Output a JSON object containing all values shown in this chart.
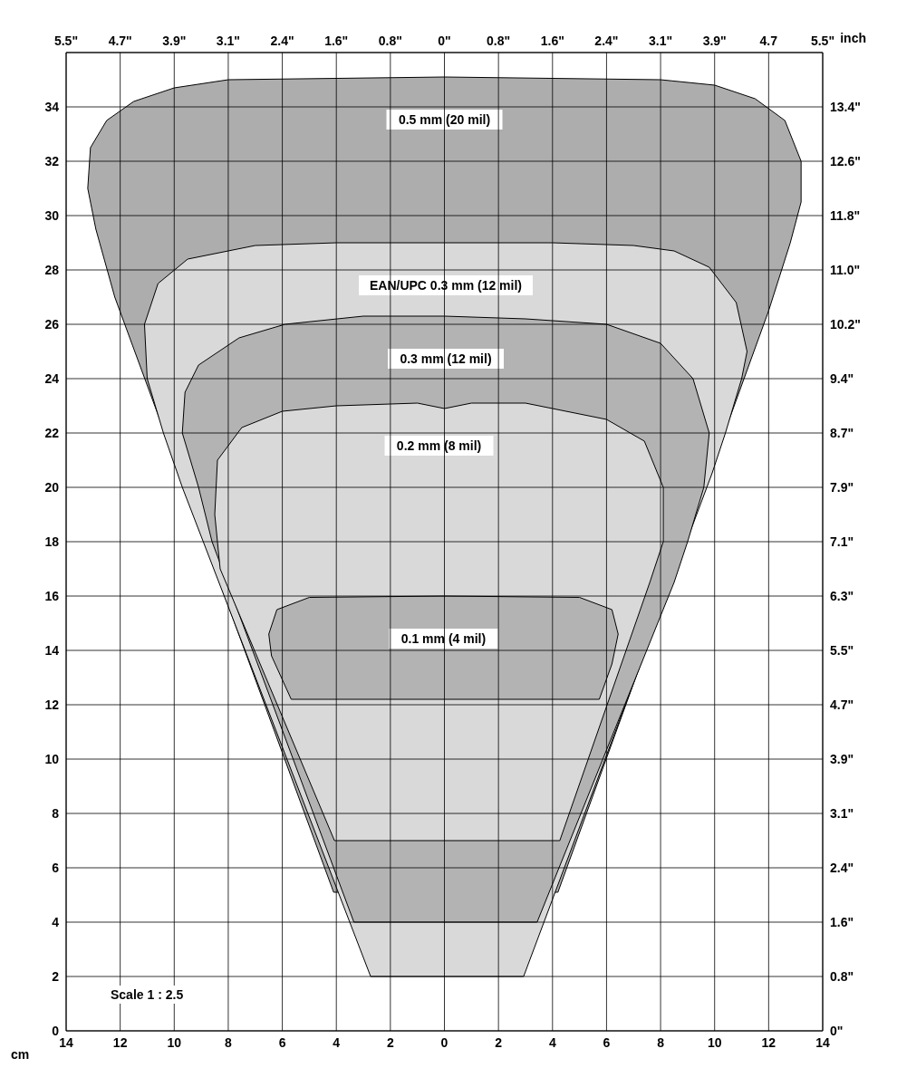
{
  "chart_data": {
    "type": "area",
    "xlabel": "cm",
    "y2label": "inch",
    "annotations": [
      "Scale 1 : 2.5"
    ],
    "xlim": [
      -14,
      14
    ],
    "ylim": [
      0,
      36
    ],
    "xticks": [
      {
        "value": -14,
        "label": "14"
      },
      {
        "value": -12,
        "label": "12"
      },
      {
        "value": -10,
        "label": "10"
      },
      {
        "value": -8,
        "label": "8"
      },
      {
        "value": -6,
        "label": "6"
      },
      {
        "value": -4,
        "label": "4"
      },
      {
        "value": -2,
        "label": "2"
      },
      0,
      2,
      4,
      6,
      8,
      10,
      12,
      14
    ],
    "yticks": [
      0,
      2,
      4,
      6,
      8,
      10,
      12,
      14,
      16,
      18,
      20,
      22,
      24,
      26,
      28,
      30,
      32,
      34
    ],
    "x2lim": [
      -5.512,
      5.512
    ],
    "x2ticks": [
      {
        "value": -5.512,
        "label": "5.5\""
      },
      {
        "value": -4.724,
        "label": "4.7\""
      },
      {
        "value": -3.937,
        "label": "3.9\""
      },
      {
        "value": -3.15,
        "label": "3.1\""
      },
      {
        "value": -2.362,
        "label": "2.4\""
      },
      {
        "value": -1.575,
        "label": "1.6\""
      },
      {
        "value": -0.787,
        "label": "0.8\""
      },
      {
        "value": 0,
        "label": "0\""
      },
      {
        "value": 0.787,
        "label": "0.8\""
      },
      {
        "value": 1.575,
        "label": "1.6\""
      },
      {
        "value": 2.362,
        "label": "2.4\""
      },
      {
        "value": 3.15,
        "label": "3.1\""
      },
      {
        "value": 3.937,
        "label": "3.9\""
      },
      {
        "value": 4.724,
        "label": "4.7"
      },
      {
        "value": 5.512,
        "label": "5.5\""
      }
    ],
    "y2lim": [
      0,
      14.173
    ],
    "y2ticks": [
      {
        "value": 0,
        "label": "0\""
      },
      {
        "value": 0.787,
        "label": "0.8\""
      },
      {
        "value": 1.575,
        "label": "1.6\""
      },
      {
        "value": 2.362,
        "label": "2.4\""
      },
      {
        "value": 3.15,
        "label": "3.1\""
      },
      {
        "value": 3.937,
        "label": "3.9\""
      },
      {
        "value": 4.724,
        "label": "4.7\""
      },
      {
        "value": 5.512,
        "label": "5.5\""
      },
      {
        "value": 6.299,
        "label": "6.3\""
      },
      {
        "value": 7.087,
        "label": "7.1\""
      },
      {
        "value": 7.874,
        "label": "7.9\""
      },
      {
        "value": 8.661,
        "label": "8.7\""
      },
      {
        "value": 9.449,
        "label": "9.4\""
      },
      {
        "value": 10.236,
        "label": "10.2\""
      },
      {
        "value": 11.024,
        "label": "11.0\""
      },
      {
        "value": 11.811,
        "label": "11.8\""
      },
      {
        "value": 12.598,
        "label": "12.6\""
      },
      {
        "value": 13.386,
        "label": "13.4\""
      }
    ],
    "grid": true,
    "marker": "none",
    "series": [
      {
        "name": "0.5 mm (20 mil)",
        "color": "#adadad",
        "x": [
          -4.1,
          -12.2,
          -12.9,
          -13.2,
          -13.1,
          -12.5,
          -11.5,
          -10,
          -8,
          0,
          8,
          10,
          11.5,
          12.6,
          13.2,
          13.2,
          12.8,
          12,
          4.2
        ],
        "values": [
          5.1,
          27,
          29.5,
          31,
          32.5,
          33.5,
          34.2,
          34.7,
          35,
          35.1,
          35,
          34.8,
          34.3,
          33.5,
          32,
          30.5,
          29,
          26.5,
          5.1
        ]
      },
      {
        "name": "EAN/UPC 0.3 mm (12 mil)",
        "color": "#d9d9d9",
        "x": [
          -2.73,
          -9.7,
          -10.4,
          -11,
          -11.1,
          -10.6,
          -9.5,
          -7,
          -4,
          0,
          4,
          7,
          8.5,
          9.8,
          10.8,
          11.2,
          11,
          10.4,
          9.9,
          2.93
        ],
        "values": [
          2,
          20,
          22,
          24,
          26,
          27.5,
          28.4,
          28.9,
          29,
          29,
          29,
          28.9,
          28.7,
          28.1,
          26.8,
          25,
          24,
          22,
          20.5,
          2
        ]
      },
      {
        "name": "0.3 mm (12 mil)",
        "color": "#b3b3b3",
        "x": [
          -3.35,
          -8.6,
          -9.1,
          -9.7,
          -9.6,
          -9.1,
          -7.6,
          -5.9,
          -3,
          0,
          3,
          6,
          8,
          9.2,
          9.8,
          9.6,
          9,
          8.5,
          3.43
        ],
        "values": [
          4,
          18,
          20,
          22,
          23.5,
          24.5,
          25.5,
          26,
          26.3,
          26.3,
          26.2,
          26,
          25.3,
          24,
          22,
          20,
          18,
          16.5,
          4
        ]
      },
      {
        "name": "0.2 mm (8 mil)",
        "color": "#d9d9d9",
        "x": [
          -4.07,
          -8.3,
          -8.5,
          -8.4,
          -7.5,
          -6,
          -4,
          -1,
          0,
          1,
          3,
          4,
          6,
          7.4,
          8.1,
          8.1,
          7.6,
          4.27
        ],
        "values": [
          7,
          17,
          19,
          21,
          22.2,
          22.8,
          23,
          23.1,
          22.9,
          23.1,
          23.1,
          22.9,
          22.5,
          21.7,
          20,
          18,
          16.5,
          7
        ]
      },
      {
        "name": "0.1 mm (4 mil)",
        "color": "#b3b3b3",
        "x": [
          -5.67,
          -6.4,
          -6.5,
          -6.2,
          -5,
          0,
          5,
          6.2,
          6.43,
          6.2,
          5.73
        ],
        "values": [
          12.2,
          13.8,
          14.6,
          15.5,
          15.95,
          16,
          15.95,
          15.5,
          14.6,
          13.5,
          12.2
        ]
      }
    ]
  }
}
